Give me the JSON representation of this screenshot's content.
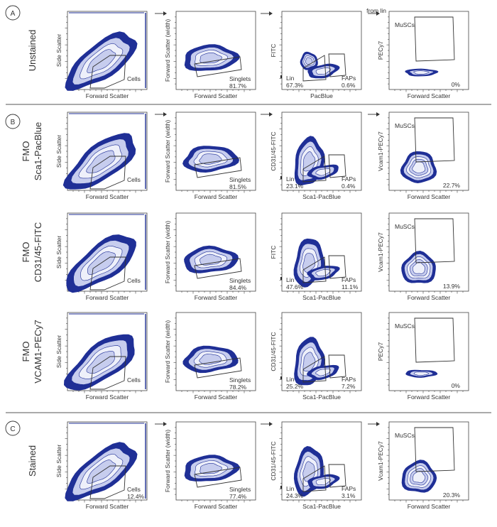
{
  "chart_data": {
    "type": "contour",
    "title": "",
    "columns": [
      {
        "xlabel": "Forward Scatter"
      },
      {
        "xlabel": "Forward Scatter"
      },
      {
        "xlabel": "Sca1-PacBlue"
      },
      {
        "xlabel": "Forward Scatter"
      }
    ],
    "sections": [
      {
        "letter": "A",
        "rows": [
          0
        ]
      },
      {
        "letter": "B",
        "rows": [
          1,
          2,
          3
        ]
      },
      {
        "letter": "C",
        "rows": [
          4
        ]
      }
    ],
    "rows": [
      {
        "row_label": [
          "Unstained"
        ],
        "panels": [
          {
            "ylabel": "Side Scatter",
            "xlabel": "Forward Scatter",
            "gates": [
              {
                "name": "Cells",
                "percent": ""
              }
            ]
          },
          {
            "ylabel": "Forward Scatter (width)",
            "xlabel": "Forward Scatter",
            "gates": [
              {
                "name": "Singlets",
                "percent": "81.7%"
              }
            ]
          },
          {
            "ylabel": "FITC",
            "xlabel": "PacBlue",
            "gates": [
              {
                "name": "Lin",
                "percent": "67.3%"
              },
              {
                "name": "FAPs",
                "percent": "0.6%"
              }
            ]
          },
          {
            "ylabel": "PECy7",
            "xlabel": "Forward Scatter",
            "top_note": "from lin",
            "gates": [
              {
                "name": "MuSCs",
                "percent": "0%"
              }
            ]
          }
        ]
      },
      {
        "row_label": [
          "FMO",
          "Sca1-PacBlue"
        ],
        "panels": [
          {
            "ylabel": "Side Scatter",
            "xlabel": "Forward Scatter",
            "gates": [
              {
                "name": "Cells",
                "percent": ""
              }
            ]
          },
          {
            "ylabel": "Forward Scatter (width)",
            "xlabel": "Forward Scatter",
            "gates": [
              {
                "name": "Singlets",
                "percent": "81.5%"
              }
            ]
          },
          {
            "ylabel": "CD31/45-FITC",
            "xlabel": "Sca1-PacBlue",
            "gates": [
              {
                "name": "Lin",
                "percent": "23.1%"
              },
              {
                "name": "FAPs",
                "percent": "0.4%"
              }
            ]
          },
          {
            "ylabel": "Vcam1-PECy7",
            "xlabel": "Forward Scatter",
            "gates": [
              {
                "name": "MuSCs",
                "percent": "22.7%"
              }
            ]
          }
        ]
      },
      {
        "row_label": [
          "FMO",
          "CD31/45-FITC"
        ],
        "panels": [
          {
            "ylabel": "Side Scatter",
            "xlabel": "Forward Scatter",
            "gates": [
              {
                "name": "Cells",
                "percent": ""
              }
            ]
          },
          {
            "ylabel": "Forward Scatter (width)",
            "xlabel": "Forward Scatter",
            "gates": [
              {
                "name": "Singlets",
                "percent": "84.4%"
              }
            ]
          },
          {
            "ylabel": "FITC",
            "xlabel": "Sca1-PacBlue",
            "gates": [
              {
                "name": "Lin",
                "percent": "47.6%"
              },
              {
                "name": "FAPs",
                "percent": "11.1%"
              }
            ]
          },
          {
            "ylabel": "Vcam1-PECy7",
            "xlabel": "Forward Scatter",
            "gates": [
              {
                "name": "MuSCs",
                "percent": "13.9%"
              }
            ]
          }
        ]
      },
      {
        "row_label": [
          "FMO",
          "VCAM1-PECy7"
        ],
        "panels": [
          {
            "ylabel": "Side Scatter",
            "xlabel": "Forward Scatter",
            "gates": [
              {
                "name": "Cells",
                "percent": ""
              }
            ]
          },
          {
            "ylabel": "Forward Scatter (width)",
            "xlabel": "Forward Scatter",
            "gates": [
              {
                "name": "Singlets",
                "percent": "78.2%"
              }
            ]
          },
          {
            "ylabel": "CD31/45-FITC",
            "xlabel": "Sca1-PacBlue",
            "gates": [
              {
                "name": "Lin",
                "percent": "25.2%"
              },
              {
                "name": "FAPs",
                "percent": "7.2%"
              }
            ]
          },
          {
            "ylabel": "PECy7",
            "xlabel": "Forward Scatter",
            "gates": [
              {
                "name": "MuSCs",
                "percent": "0%"
              }
            ]
          }
        ]
      },
      {
        "row_label": [
          "Stained"
        ],
        "panels": [
          {
            "ylabel": "Side Scatter",
            "xlabel": "Forward Scatter",
            "gates": [
              {
                "name": "Cells",
                "percent": "12.4%"
              }
            ]
          },
          {
            "ylabel": "Forward Scatter (width)",
            "xlabel": "Forward Scatter",
            "gates": [
              {
                "name": "Singlets",
                "percent": "77.4%"
              }
            ]
          },
          {
            "ylabel": "CD31/45-FITC",
            "xlabel": "Sca1-PacBlue",
            "gates": [
              {
                "name": "Lin",
                "percent": "24.3%"
              },
              {
                "name": "FAPs",
                "percent": "3.1%"
              }
            ]
          },
          {
            "ylabel": "Vcam1-PECy7",
            "xlabel": "Forward Scatter",
            "gates": [
              {
                "name": "MuSCs",
                "percent": "20.3%"
              }
            ]
          }
        ]
      }
    ],
    "colors": {
      "dark": "#1f2f96",
      "mid": "#5b6ec4",
      "light": "#c7cdee",
      "gate": "#333333",
      "divider": "#555555"
    }
  }
}
